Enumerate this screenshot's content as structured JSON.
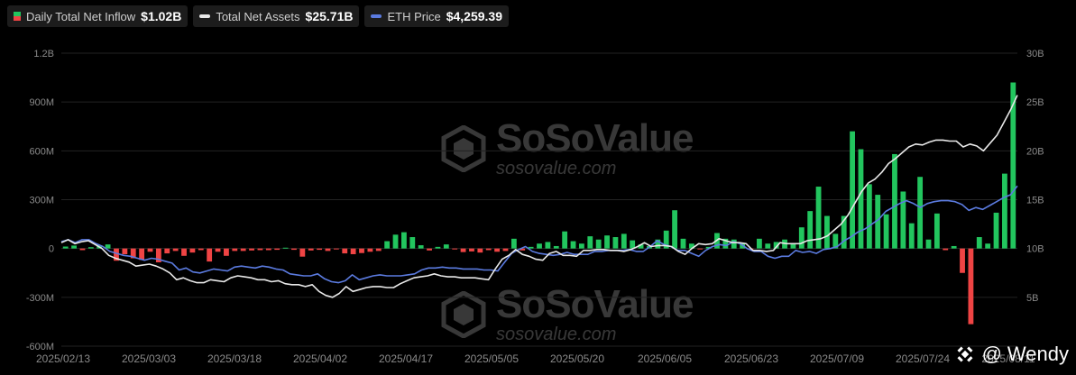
{
  "legend": {
    "inflow_label": "Daily Total Net Inflow",
    "inflow_value": "$1.02B",
    "assets_label": "Total Net Assets",
    "assets_value": "$25.71B",
    "eth_label": "ETH Price",
    "eth_value": "$4,259.39"
  },
  "watermark": {
    "name": "SoSoValue",
    "site": "sosovalue.com"
  },
  "credit": {
    "at": "@",
    "name": "Wendy"
  },
  "colors": {
    "positive": "#22c55e",
    "negative": "#ef4444",
    "assets": "#e8e8e8",
    "eth": "#5b7be0",
    "grid": "#222222",
    "axis_text": "#8a8a8a"
  },
  "chart_data": {
    "type": "bar",
    "title": "",
    "grid": true,
    "legend_placement": "top-left",
    "x_ticks": [
      "2025/02/13",
      "2025/03/03",
      "2025/03/18",
      "2025/04/02",
      "2025/04/17",
      "2025/05/05",
      "2025/05/20",
      "2025/06/05",
      "2025/06/23",
      "2025/07/09",
      "2025/07/24",
      "2025/08/11"
    ],
    "y_left": {
      "ticks": [
        "1.2B",
        "900M",
        "600M",
        "300M",
        "0",
        "-300M",
        "-600M"
      ],
      "ylim": [
        -600,
        1200
      ],
      "unit": "M"
    },
    "y_right": {
      "ticks": [
        "30B",
        "25B",
        "20B",
        "15B",
        "10B",
        "5B"
      ],
      "ylim": [
        0,
        30
      ],
      "unit": "B"
    },
    "series": [
      {
        "type": "bar",
        "values": [
          12,
          18,
          -10,
          8,
          20,
          25,
          -75,
          -35,
          -60,
          -70,
          -20,
          -85,
          -30,
          -15,
          -45,
          -25,
          -10,
          -80,
          -20,
          -45,
          -15,
          -15,
          -12,
          -10,
          -10,
          -8,
          5,
          -8,
          -50,
          -12,
          -8,
          -15,
          -5,
          -30,
          -35,
          -28,
          -20,
          -15,
          45,
          85,
          100,
          70,
          20,
          -12,
          10,
          25,
          -5,
          -22,
          -18,
          -25,
          -10,
          -20,
          -15,
          60,
          -12,
          10,
          30,
          40,
          15,
          105,
          45,
          30,
          75,
          55,
          80,
          70,
          90,
          50,
          25,
          15,
          55,
          110,
          235,
          60,
          30,
          -5,
          10,
          95,
          60,
          55,
          30,
          -5,
          60,
          30,
          40,
          55,
          30,
          130,
          230,
          380,
          200,
          90,
          200,
          720,
          610,
          395,
          330,
          210,
          580,
          350,
          155,
          440,
          55,
          215,
          -10,
          15,
          -150,
          -465,
          70,
          30,
          220,
          460,
          1020
        ]
      },
      {
        "type": "line",
        "values": [
          10.6,
          10.9,
          10.5,
          10.7,
          10.8,
          10.4,
          10.0,
          9.3,
          9.0,
          8.8,
          8.6,
          8.2,
          8.3,
          8.4,
          8.2,
          7.9,
          7.5,
          6.8,
          7.0,
          6.7,
          6.5,
          6.5,
          6.8,
          6.7,
          6.6,
          7.0,
          7.2,
          7.1,
          7.0,
          6.8,
          6.8,
          6.6,
          6.7,
          6.4,
          6.3,
          6.3,
          6.1,
          6.3,
          5.6,
          5.2,
          5.0,
          5.4,
          6.1,
          5.6,
          5.8,
          6.0,
          6.1,
          6.1,
          6.0,
          6.0,
          6.4,
          6.7,
          7.0,
          7.1,
          7.2,
          7.4,
          7.2,
          7.1,
          7.1,
          7.0,
          7.0,
          7.0,
          6.9,
          6.8,
          7.9,
          8.9,
          9.3,
          9.9,
          9.4,
          9.2,
          8.9,
          8.8,
          9.5,
          9.7,
          9.3,
          9.3,
          9.2,
          9.8,
          9.8,
          9.9,
          9.9,
          9.8,
          9.8,
          9.7,
          9.9,
          10.2,
          10.6,
          10.2,
          10.3,
          10.3,
          10.2,
          9.7,
          9.4,
          10.0,
          10.5,
          10.4,
          10.5,
          11.0,
          10.8,
          10.6,
          10.6,
          10.5,
          9.8,
          9.8,
          9.7,
          9.8,
          10.6,
          10.5,
          10.5,
          10.5,
          10.8,
          10.9,
          11.0,
          11.3,
          11.9,
          12.5,
          13.4,
          14.6,
          15.8,
          16.7,
          17.1,
          17.8,
          18.7,
          19.2,
          19.8,
          20.4,
          20.7,
          20.6,
          20.9,
          21.1,
          21.1,
          21.0,
          21.0,
          20.4,
          20.7,
          20.5,
          20.0,
          20.8,
          21.6,
          22.9,
          24.2,
          25.7
        ]
      },
      {
        "type": "line",
        "values": [
          10.7,
          10.9,
          10.6,
          10.9,
          10.9,
          10.5,
          10.2,
          9.7,
          9.5,
          9.3,
          9.2,
          9.0,
          8.8,
          9.0,
          8.9,
          8.7,
          8.5,
          7.8,
          8.0,
          7.6,
          7.5,
          7.7,
          7.9,
          7.8,
          7.7,
          8.1,
          8.2,
          8.1,
          8.0,
          8.2,
          8.1,
          7.9,
          7.8,
          7.4,
          7.3,
          7.2,
          7.2,
          7.4,
          6.9,
          6.6,
          6.5,
          6.7,
          7.3,
          6.8,
          7.0,
          7.2,
          7.3,
          7.2,
          7.2,
          7.2,
          7.3,
          7.4,
          7.8,
          8.0,
          8.0,
          8.1,
          8.0,
          8.0,
          7.9,
          7.9,
          7.9,
          7.8,
          7.8,
          7.7,
          8.6,
          9.5,
          9.9,
          10.2,
          9.7,
          9.5,
          9.4,
          9.3,
          9.4,
          9.6,
          9.4,
          9.4,
          9.4,
          9.7,
          9.7,
          9.8,
          9.8,
          9.8,
          9.9,
          9.7,
          9.7,
          10.2,
          10.8,
          10.4,
          10.2,
          9.8,
          9.8,
          9.5,
          9.2,
          9.8,
          10.2,
          10.4,
          10.3,
          10.7,
          10.5,
          10.0,
          9.7,
          9.7,
          9.2,
          9.0,
          9.2,
          9.2,
          9.8,
          9.6,
          9.7,
          9.5,
          9.9,
          10.0,
          10.2,
          10.8,
          11.2,
          11.7,
          12.0,
          12.5,
          13.0,
          13.8,
          14.2,
          14.6,
          14.9,
          14.6,
          14.2,
          14.6,
          14.8,
          14.9,
          14.9,
          14.8,
          14.5,
          13.9,
          14.2,
          14.0,
          14.4,
          14.8,
          15.2,
          15.5,
          16.4
        ]
      }
    ]
  }
}
